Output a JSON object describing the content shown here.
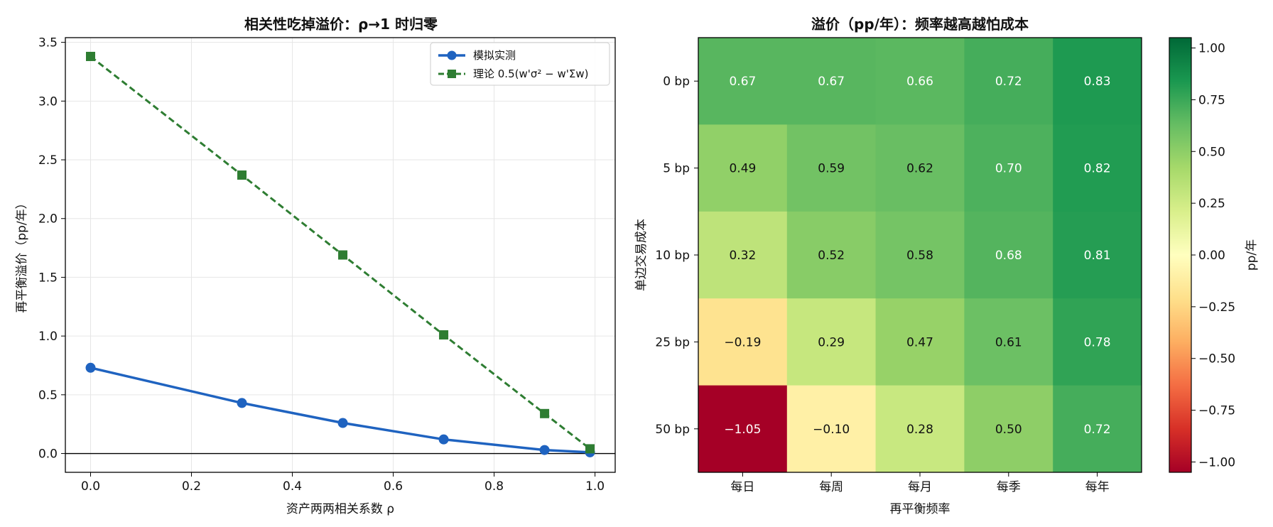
{
  "chart_data": [
    {
      "type": "line",
      "title": "相关性吃掉溢价：ρ→1 时归零",
      "xlabel": "资产两两相关系数 ρ",
      "ylabel": "再平衡溢价（pp/年）",
      "xlim": [
        -0.05,
        1.04
      ],
      "ylim": [
        -0.16,
        3.54
      ],
      "xticks": [
        "0.0",
        "0.2",
        "0.4",
        "0.6",
        "0.8",
        "1.0"
      ],
      "yticks": [
        "0.0",
        "0.5",
        "1.0",
        "1.5",
        "2.0",
        "2.5",
        "3.0",
        "3.5"
      ],
      "grid": true,
      "zero_line": true,
      "legend_position": "top-right",
      "series": [
        {
          "name": "模拟实测",
          "color": "#1f63c0",
          "marker": "circle",
          "linestyle": "solid",
          "x": [
            0.0,
            0.3,
            0.5,
            0.7,
            0.9,
            0.99
          ],
          "y": [
            0.73,
            0.43,
            0.26,
            0.12,
            0.03,
            0.01
          ]
        },
        {
          "name": "理论 0.5(w'σ² − w'Σw)",
          "color": "#2e7d32",
          "marker": "square",
          "linestyle": "dashed",
          "x": [
            0.0,
            0.3,
            0.5,
            0.7,
            0.9,
            0.99
          ],
          "y": [
            3.38,
            2.37,
            1.69,
            1.01,
            0.34,
            0.04
          ]
        }
      ]
    },
    {
      "type": "heatmap",
      "title": "溢价（pp/年）：频率越高越怕成本",
      "xlabel": "再平衡频率",
      "ylabel": "单边交易成本",
      "x_categories": [
        "每日",
        "每周",
        "每月",
        "每季",
        "每年"
      ],
      "y_categories": [
        "0 bp",
        "5 bp",
        "10 bp",
        "25 bp",
        "50 bp"
      ],
      "values": [
        [
          0.67,
          0.67,
          0.66,
          0.72,
          0.83
        ],
        [
          0.49,
          0.59,
          0.62,
          0.7,
          0.82
        ],
        [
          0.32,
          0.52,
          0.58,
          0.68,
          0.81
        ],
        [
          -0.19,
          0.29,
          0.47,
          0.61,
          0.78
        ],
        [
          -1.05,
          -0.1,
          0.28,
          0.5,
          0.72
        ]
      ],
      "vmin": -1.05,
      "vmax": 1.05,
      "colormap": "RdYlGn",
      "colorbar_label": "pp/年",
      "colorbar_ticks": [
        "1.00",
        "0.75",
        "0.50",
        "0.25",
        "0.00",
        "−0.25",
        "−0.50",
        "−0.75",
        "−1.00"
      ]
    }
  ]
}
